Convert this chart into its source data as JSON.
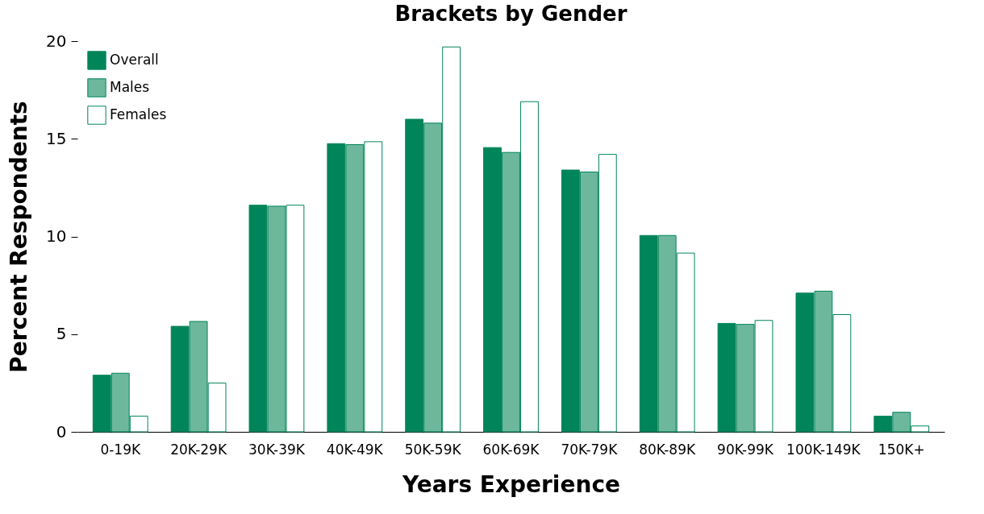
{
  "chart_data": {
    "type": "bar",
    "title": "Brackets by Gender",
    "xlabel": "Years Experience",
    "ylabel": "Percent Respondents",
    "categories": [
      "0-19K",
      "20K-29K",
      "30K-39K",
      "40K-49K",
      "50K-59K",
      "60K-69K",
      "70K-79K",
      "80K-89K",
      "90K-99K",
      "100K-149K",
      "150K+"
    ],
    "series": [
      {
        "name": "Overall",
        "color": "#00845a",
        "values": [
          2.9,
          5.4,
          11.6,
          14.75,
          16.0,
          14.55,
          13.4,
          10.05,
          5.55,
          7.1,
          0.8
        ]
      },
      {
        "name": "Males",
        "color": "#6db89d",
        "values": [
          3.0,
          5.65,
          11.55,
          14.7,
          15.8,
          14.3,
          13.3,
          10.05,
          5.5,
          7.2,
          1.0
        ]
      },
      {
        "name": "Females",
        "color": "#ffffff",
        "values": [
          0.8,
          2.5,
          11.6,
          14.85,
          19.7,
          16.9,
          14.2,
          9.15,
          5.7,
          6.0,
          0.3
        ]
      }
    ],
    "ylim": [
      0,
      20
    ],
    "yticks": [
      0,
      5,
      10,
      15,
      20
    ],
    "grid": false,
    "legend": "top left"
  }
}
